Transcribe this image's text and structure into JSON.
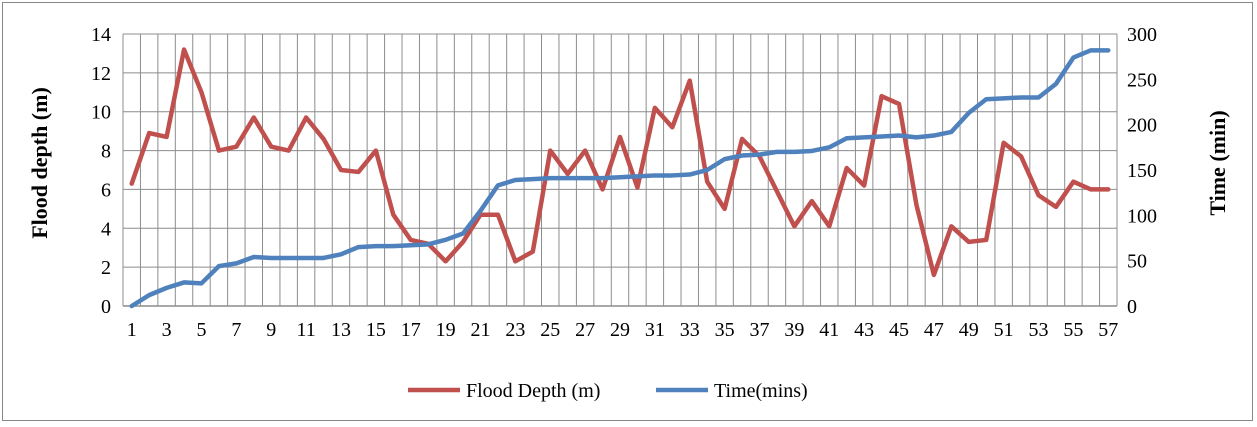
{
  "chart_data": {
    "type": "line",
    "title": "",
    "xlabel": "",
    "ylabel": "Flood depth (m)",
    "y2label": "Time (min)",
    "ylim": [
      0,
      14
    ],
    "y2lim": [
      0,
      300
    ],
    "yticks": [
      0,
      2,
      4,
      6,
      8,
      10,
      12,
      14
    ],
    "y2ticks": [
      0,
      50,
      100,
      150,
      200,
      250,
      300
    ],
    "x": [
      1,
      2,
      3,
      4,
      5,
      6,
      7,
      8,
      9,
      10,
      11,
      12,
      13,
      14,
      15,
      16,
      17,
      18,
      19,
      20,
      21,
      22,
      23,
      24,
      25,
      26,
      27,
      28,
      29,
      30,
      31,
      32,
      33,
      34,
      35,
      36,
      37,
      38,
      39,
      40,
      41,
      42,
      43,
      44,
      45,
      46,
      47,
      48,
      49,
      50,
      51,
      52,
      53,
      54,
      55,
      56,
      57
    ],
    "xtick_labels": [
      "1",
      "3",
      "5",
      "7",
      "9",
      "11",
      "13",
      "15",
      "17",
      "19",
      "21",
      "23",
      "25",
      "27",
      "29",
      "31",
      "33",
      "35",
      "37",
      "39",
      "41",
      "43",
      "45",
      "47",
      "49",
      "51",
      "53",
      "55",
      "57"
    ],
    "grid": true,
    "legend_position": "bottom",
    "series": [
      {
        "name": "Flood Depth (m)",
        "axis": "left",
        "color": "#c0504d",
        "values": [
          6.3,
          8.9,
          8.7,
          13.2,
          11.0,
          8.0,
          8.2,
          9.7,
          8.2,
          8.0,
          9.7,
          8.6,
          7.0,
          6.9,
          8.0,
          4.7,
          3.4,
          3.2,
          2.3,
          3.3,
          4.7,
          4.7,
          2.3,
          2.8,
          8.0,
          6.8,
          8.0,
          6.0,
          8.7,
          6.1,
          10.2,
          9.2,
          11.6,
          6.4,
          5.0,
          8.6,
          7.7,
          5.9,
          4.1,
          5.4,
          4.1,
          7.1,
          6.2,
          10.8,
          10.4,
          5.2,
          1.6,
          4.1,
          3.3,
          3.4,
          8.4,
          7.7,
          5.7,
          5.1,
          6.4,
          6.0,
          6.0
        ]
      },
      {
        "name": "Time(mins)",
        "axis": "right",
        "color": "#4f81bd",
        "values": [
          0,
          12,
          20,
          26,
          25,
          44,
          47,
          54,
          53,
          53,
          53,
          53,
          57,
          65,
          66,
          66,
          67,
          68,
          73,
          80,
          105,
          133,
          139,
          140,
          141,
          141,
          141,
          141,
          142,
          143,
          144,
          144,
          145,
          150,
          162,
          166,
          167,
          170,
          170,
          171,
          175,
          185,
          186,
          187,
          188,
          186,
          188,
          192,
          213,
          228,
          229,
          230,
          230,
          245,
          274,
          282,
          282
        ]
      }
    ]
  }
}
